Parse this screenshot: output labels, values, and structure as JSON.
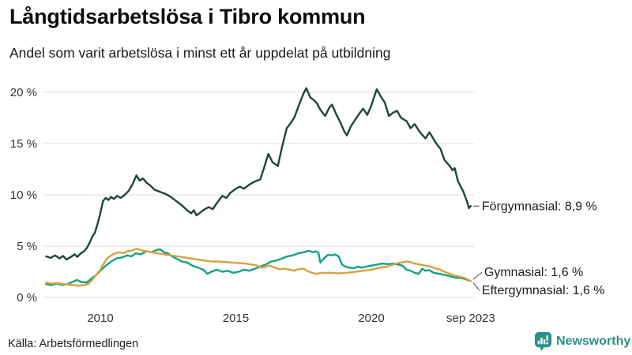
{
  "header": {
    "title": "Långtidsarbetslösa i Tibro kommun",
    "subtitle": "Andel som varit arbetslösa i minst ett år uppdelat på utbildning"
  },
  "footer": {
    "source": "Källa: Arbetsförmedlingen",
    "brand": "Newsworthy",
    "brand_color": "#2a9188"
  },
  "chart_data": {
    "type": "line",
    "title": "Långtidsarbetslösa i Tibro kommun",
    "subtitle": "Andel som varit arbetslösa i minst ett år uppdelat på utbildning",
    "x_unit": "decimal_year",
    "x_range": [
      2008.0,
      2023.75
    ],
    "ylim": [
      0,
      21
    ],
    "grid": true,
    "legend_position": "end-of-line-labels",
    "y_ticks": [
      {
        "value": 0,
        "label": "0 %"
      },
      {
        "value": 5,
        "label": "5 %"
      },
      {
        "value": 10,
        "label": "10 %"
      },
      {
        "value": 15,
        "label": "15 %"
      },
      {
        "value": 20,
        "label": "20 %"
      }
    ],
    "x_ticks": [
      {
        "value": 2010,
        "label": "2010"
      },
      {
        "value": 2015,
        "label": "2015"
      },
      {
        "value": 2020,
        "label": "2020"
      },
      {
        "value": 2023.67,
        "label": "sep 2023"
      }
    ],
    "series": [
      {
        "name": "Förgymnasial",
        "label": "Förgymnasial: 8,9 %",
        "last_value": "8,9 %",
        "color": "#1e453e",
        "label_offset": [
          14,
          0
        ],
        "points": [
          [
            2008.0,
            4.0
          ],
          [
            2008.17,
            3.85
          ],
          [
            2008.33,
            4.1
          ],
          [
            2008.5,
            3.8
          ],
          [
            2008.62,
            4.05
          ],
          [
            2008.75,
            3.7
          ],
          [
            2008.92,
            3.95
          ],
          [
            2009.05,
            4.2
          ],
          [
            2009.15,
            3.95
          ],
          [
            2009.28,
            4.3
          ],
          [
            2009.4,
            4.5
          ],
          [
            2009.5,
            4.8
          ],
          [
            2009.6,
            5.3
          ],
          [
            2009.7,
            5.9
          ],
          [
            2009.8,
            6.3
          ],
          [
            2009.9,
            7.2
          ],
          [
            2010.0,
            8.2
          ],
          [
            2010.1,
            9.4
          ],
          [
            2010.2,
            9.7
          ],
          [
            2010.3,
            9.5
          ],
          [
            2010.4,
            9.8
          ],
          [
            2010.5,
            9.6
          ],
          [
            2010.62,
            9.9
          ],
          [
            2010.75,
            9.7
          ],
          [
            2010.9,
            10.0
          ],
          [
            2011.05,
            10.4
          ],
          [
            2011.2,
            11.1
          ],
          [
            2011.33,
            11.9
          ],
          [
            2011.45,
            11.4
          ],
          [
            2011.58,
            11.6
          ],
          [
            2011.7,
            11.2
          ],
          [
            2011.85,
            10.9
          ],
          [
            2012.0,
            10.5
          ],
          [
            2012.2,
            10.3
          ],
          [
            2012.4,
            10.1
          ],
          [
            2012.6,
            9.8
          ],
          [
            2012.8,
            9.4
          ],
          [
            2013.0,
            9.0
          ],
          [
            2013.2,
            8.5
          ],
          [
            2013.35,
            8.2
          ],
          [
            2013.45,
            8.5
          ],
          [
            2013.55,
            8.0
          ],
          [
            2013.7,
            8.3
          ],
          [
            2013.85,
            8.6
          ],
          [
            2014.0,
            8.8
          ],
          [
            2014.15,
            8.6
          ],
          [
            2014.3,
            9.2
          ],
          [
            2014.5,
            9.9
          ],
          [
            2014.65,
            9.7
          ],
          [
            2014.8,
            10.2
          ],
          [
            2015.0,
            10.6
          ],
          [
            2015.15,
            10.8
          ],
          [
            2015.3,
            10.6
          ],
          [
            2015.5,
            11.0
          ],
          [
            2015.7,
            11.3
          ],
          [
            2015.9,
            11.5
          ],
          [
            2016.05,
            12.7
          ],
          [
            2016.2,
            14.0
          ],
          [
            2016.35,
            13.2
          ],
          [
            2016.55,
            12.8
          ],
          [
            2016.7,
            14.6
          ],
          [
            2016.88,
            16.5
          ],
          [
            2017.0,
            16.9
          ],
          [
            2017.17,
            17.6
          ],
          [
            2017.35,
            18.9
          ],
          [
            2017.5,
            19.9
          ],
          [
            2017.6,
            20.4
          ],
          [
            2017.75,
            19.5
          ],
          [
            2017.9,
            19.2
          ],
          [
            2018.0,
            18.9
          ],
          [
            2018.1,
            18.4
          ],
          [
            2018.2,
            18.0
          ],
          [
            2018.3,
            17.7
          ],
          [
            2018.45,
            18.5
          ],
          [
            2018.55,
            18.8
          ],
          [
            2018.7,
            17.9
          ],
          [
            2018.85,
            17.1
          ],
          [
            2019.0,
            16.2
          ],
          [
            2019.1,
            15.8
          ],
          [
            2019.25,
            16.7
          ],
          [
            2019.4,
            17.3
          ],
          [
            2019.55,
            17.9
          ],
          [
            2019.7,
            18.4
          ],
          [
            2019.85,
            17.8
          ],
          [
            2020.0,
            18.7
          ],
          [
            2020.1,
            19.5
          ],
          [
            2020.2,
            20.3
          ],
          [
            2020.35,
            19.6
          ],
          [
            2020.5,
            19.0
          ],
          [
            2020.65,
            17.7
          ],
          [
            2020.8,
            18.0
          ],
          [
            2020.95,
            18.2
          ],
          [
            2021.1,
            17.5
          ],
          [
            2021.3,
            17.2
          ],
          [
            2021.45,
            16.5
          ],
          [
            2021.6,
            16.9
          ],
          [
            2021.8,
            16.1
          ],
          [
            2022.0,
            15.5
          ],
          [
            2022.15,
            16.1
          ],
          [
            2022.4,
            15.0
          ],
          [
            2022.55,
            14.5
          ],
          [
            2022.7,
            13.4
          ],
          [
            2022.9,
            12.8
          ],
          [
            2023.0,
            12.4
          ],
          [
            2023.08,
            12.6
          ],
          [
            2023.2,
            11.3
          ],
          [
            2023.4,
            10.3
          ],
          [
            2023.55,
            9.2
          ],
          [
            2023.6,
            8.7
          ],
          [
            2023.67,
            8.9
          ]
        ]
      },
      {
        "name": "Gymnasial",
        "label": "Gymnasial: 1,6 %",
        "last_value": "1,6 %",
        "color": "#13a18a",
        "label_offset": [
          17,
          -11
        ],
        "points": [
          [
            2008.0,
            1.3
          ],
          [
            2008.2,
            1.2
          ],
          [
            2008.4,
            1.35
          ],
          [
            2008.6,
            1.2
          ],
          [
            2008.8,
            1.3
          ],
          [
            2009.0,
            1.55
          ],
          [
            2009.15,
            1.7
          ],
          [
            2009.3,
            1.5
          ],
          [
            2009.5,
            1.45
          ],
          [
            2009.7,
            1.9
          ],
          [
            2009.85,
            2.2
          ],
          [
            2010.0,
            2.6
          ],
          [
            2010.2,
            3.1
          ],
          [
            2010.4,
            3.5
          ],
          [
            2010.6,
            3.8
          ],
          [
            2010.8,
            3.9
          ],
          [
            2011.0,
            4.1
          ],
          [
            2011.15,
            4.0
          ],
          [
            2011.3,
            4.3
          ],
          [
            2011.5,
            4.2
          ],
          [
            2011.7,
            4.5
          ],
          [
            2011.9,
            4.4
          ],
          [
            2012.05,
            4.6
          ],
          [
            2012.2,
            4.7
          ],
          [
            2012.35,
            4.4
          ],
          [
            2012.5,
            4.3
          ],
          [
            2012.65,
            4.0
          ],
          [
            2012.8,
            3.8
          ],
          [
            2013.0,
            3.5
          ],
          [
            2013.2,
            3.4
          ],
          [
            2013.4,
            3.1
          ],
          [
            2013.6,
            2.9
          ],
          [
            2013.8,
            2.7
          ],
          [
            2013.95,
            2.3
          ],
          [
            2014.1,
            2.5
          ],
          [
            2014.3,
            2.7
          ],
          [
            2014.5,
            2.5
          ],
          [
            2014.7,
            2.6
          ],
          [
            2014.9,
            2.4
          ],
          [
            2015.1,
            2.5
          ],
          [
            2015.3,
            2.7
          ],
          [
            2015.5,
            2.6
          ],
          [
            2015.7,
            2.8
          ],
          [
            2015.9,
            3.0
          ],
          [
            2016.1,
            3.2
          ],
          [
            2016.3,
            3.5
          ],
          [
            2016.5,
            3.6
          ],
          [
            2016.7,
            3.8
          ],
          [
            2016.9,
            4.0
          ],
          [
            2017.1,
            4.1
          ],
          [
            2017.3,
            4.3
          ],
          [
            2017.5,
            4.4
          ],
          [
            2017.7,
            4.55
          ],
          [
            2017.85,
            4.4
          ],
          [
            2017.95,
            4.5
          ],
          [
            2018.05,
            4.35
          ],
          [
            2018.12,
            3.4
          ],
          [
            2018.25,
            3.8
          ],
          [
            2018.4,
            4.15
          ],
          [
            2018.55,
            4.1
          ],
          [
            2018.65,
            4.2
          ],
          [
            2018.8,
            4.0
          ],
          [
            2018.92,
            3.2
          ],
          [
            2019.05,
            3.0
          ],
          [
            2019.2,
            2.9
          ],
          [
            2019.35,
            2.85
          ],
          [
            2019.5,
            3.0
          ],
          [
            2019.65,
            2.9
          ],
          [
            2019.8,
            3.0
          ],
          [
            2020.0,
            3.1
          ],
          [
            2020.2,
            3.2
          ],
          [
            2020.4,
            3.3
          ],
          [
            2020.6,
            3.25
          ],
          [
            2020.8,
            3.3
          ],
          [
            2021.0,
            3.2
          ],
          [
            2021.15,
            3.1
          ],
          [
            2021.3,
            2.7
          ],
          [
            2021.45,
            2.6
          ],
          [
            2021.6,
            2.4
          ],
          [
            2021.75,
            2.3
          ],
          [
            2021.88,
            2.8
          ],
          [
            2022.0,
            2.6
          ],
          [
            2022.15,
            2.65
          ],
          [
            2022.3,
            2.4
          ],
          [
            2022.5,
            2.3
          ],
          [
            2022.7,
            2.2
          ],
          [
            2022.85,
            2.1
          ],
          [
            2023.0,
            2.0
          ],
          [
            2023.15,
            1.9
          ],
          [
            2023.3,
            1.9
          ],
          [
            2023.45,
            1.8
          ],
          [
            2023.55,
            1.7
          ],
          [
            2023.67,
            1.6
          ]
        ]
      },
      {
        "name": "Eftergymnasial",
        "label": "Eftergymnasial: 1,6 %",
        "last_value": "1,6 %",
        "color": "#d8a13f",
        "label_offset": [
          14,
          12
        ],
        "points": [
          [
            2008.0,
            1.45
          ],
          [
            2008.2,
            1.35
          ],
          [
            2008.4,
            1.4
          ],
          [
            2008.6,
            1.3
          ],
          [
            2008.8,
            1.25
          ],
          [
            2009.0,
            1.2
          ],
          [
            2009.2,
            1.15
          ],
          [
            2009.4,
            1.2
          ],
          [
            2009.55,
            1.3
          ],
          [
            2009.7,
            1.7
          ],
          [
            2009.85,
            2.2
          ],
          [
            2010.0,
            2.7
          ],
          [
            2010.1,
            3.2
          ],
          [
            2010.25,
            3.8
          ],
          [
            2010.4,
            4.1
          ],
          [
            2010.55,
            4.3
          ],
          [
            2010.7,
            4.4
          ],
          [
            2010.85,
            4.3
          ],
          [
            2011.0,
            4.5
          ],
          [
            2011.15,
            4.55
          ],
          [
            2011.35,
            4.75
          ],
          [
            2011.5,
            4.6
          ],
          [
            2011.7,
            4.5
          ],
          [
            2011.9,
            4.4
          ],
          [
            2012.1,
            4.3
          ],
          [
            2012.35,
            4.2
          ],
          [
            2012.6,
            4.1
          ],
          [
            2012.85,
            4.0
          ],
          [
            2013.1,
            3.9
          ],
          [
            2013.35,
            3.8
          ],
          [
            2013.6,
            3.7
          ],
          [
            2013.85,
            3.6
          ],
          [
            2014.1,
            3.5
          ],
          [
            2014.35,
            3.5
          ],
          [
            2014.6,
            3.45
          ],
          [
            2014.85,
            3.4
          ],
          [
            2015.1,
            3.35
          ],
          [
            2015.35,
            3.3
          ],
          [
            2015.6,
            3.2
          ],
          [
            2015.8,
            3.1
          ],
          [
            2015.95,
            2.9
          ],
          [
            2016.1,
            3.0
          ],
          [
            2016.25,
            3.1
          ],
          [
            2016.45,
            2.9
          ],
          [
            2016.6,
            2.75
          ],
          [
            2016.8,
            2.8
          ],
          [
            2017.0,
            2.7
          ],
          [
            2017.15,
            2.6
          ],
          [
            2017.3,
            2.75
          ],
          [
            2017.5,
            2.8
          ],
          [
            2017.7,
            2.5
          ],
          [
            2017.95,
            2.3
          ],
          [
            2018.2,
            2.4
          ],
          [
            2018.5,
            2.4
          ],
          [
            2018.8,
            2.35
          ],
          [
            2019.1,
            2.4
          ],
          [
            2019.4,
            2.5
          ],
          [
            2019.7,
            2.6
          ],
          [
            2020.0,
            2.7
          ],
          [
            2020.3,
            2.9
          ],
          [
            2020.6,
            3.0
          ],
          [
            2020.9,
            3.3
          ],
          [
            2021.1,
            3.4
          ],
          [
            2021.3,
            3.5
          ],
          [
            2021.45,
            3.45
          ],
          [
            2021.6,
            3.3
          ],
          [
            2021.8,
            3.2
          ],
          [
            2022.0,
            3.1
          ],
          [
            2022.2,
            3.0
          ],
          [
            2022.4,
            2.8
          ],
          [
            2022.55,
            2.7
          ],
          [
            2022.7,
            2.5
          ],
          [
            2022.9,
            2.3
          ],
          [
            2023.1,
            2.1
          ],
          [
            2023.3,
            2.0
          ],
          [
            2023.45,
            1.9
          ],
          [
            2023.6,
            1.7
          ],
          [
            2023.67,
            1.6
          ]
        ]
      }
    ]
  }
}
